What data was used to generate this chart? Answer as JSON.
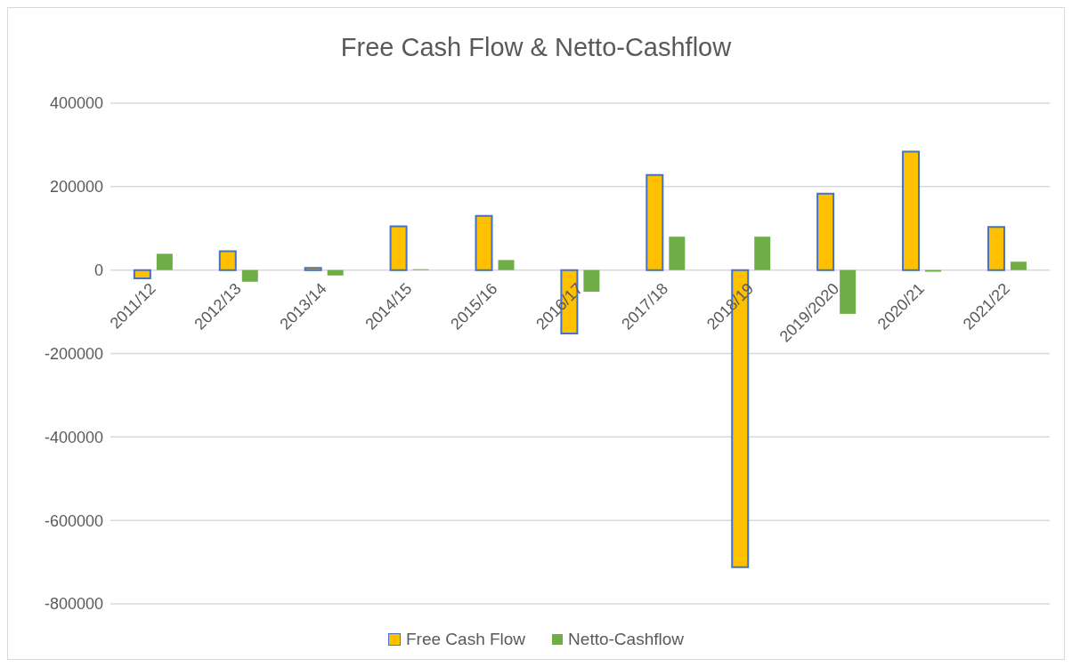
{
  "chart_data": {
    "type": "bar",
    "title": "Free Cash Flow & Netto-Cashflow",
    "categories": [
      "2011/12",
      "2012/13",
      "2013/14",
      "2014/15",
      "2015/16",
      "2016/17",
      "2017/18",
      "2018/19",
      "2019/2020",
      "2020/21",
      "2021/22"
    ],
    "series": [
      {
        "name": "Free Cash Flow",
        "color": "#ffc000",
        "values": [
          -20000,
          45000,
          5000,
          105000,
          130000,
          -152000,
          228000,
          -712000,
          183000,
          284000,
          103000
        ]
      },
      {
        "name": "Netto-Cashflow",
        "color": "#70ad47",
        "values": [
          39000,
          -28000,
          -13000,
          2000,
          24000,
          -52000,
          80000,
          80000,
          -105000,
          -4000,
          20000
        ]
      }
    ],
    "ylim": [
      -800000,
      400000
    ],
    "yticks": [
      -800000,
      -600000,
      -400000,
      -200000,
      0,
      200000,
      400000
    ],
    "grid": "y",
    "legend": "bottom"
  }
}
